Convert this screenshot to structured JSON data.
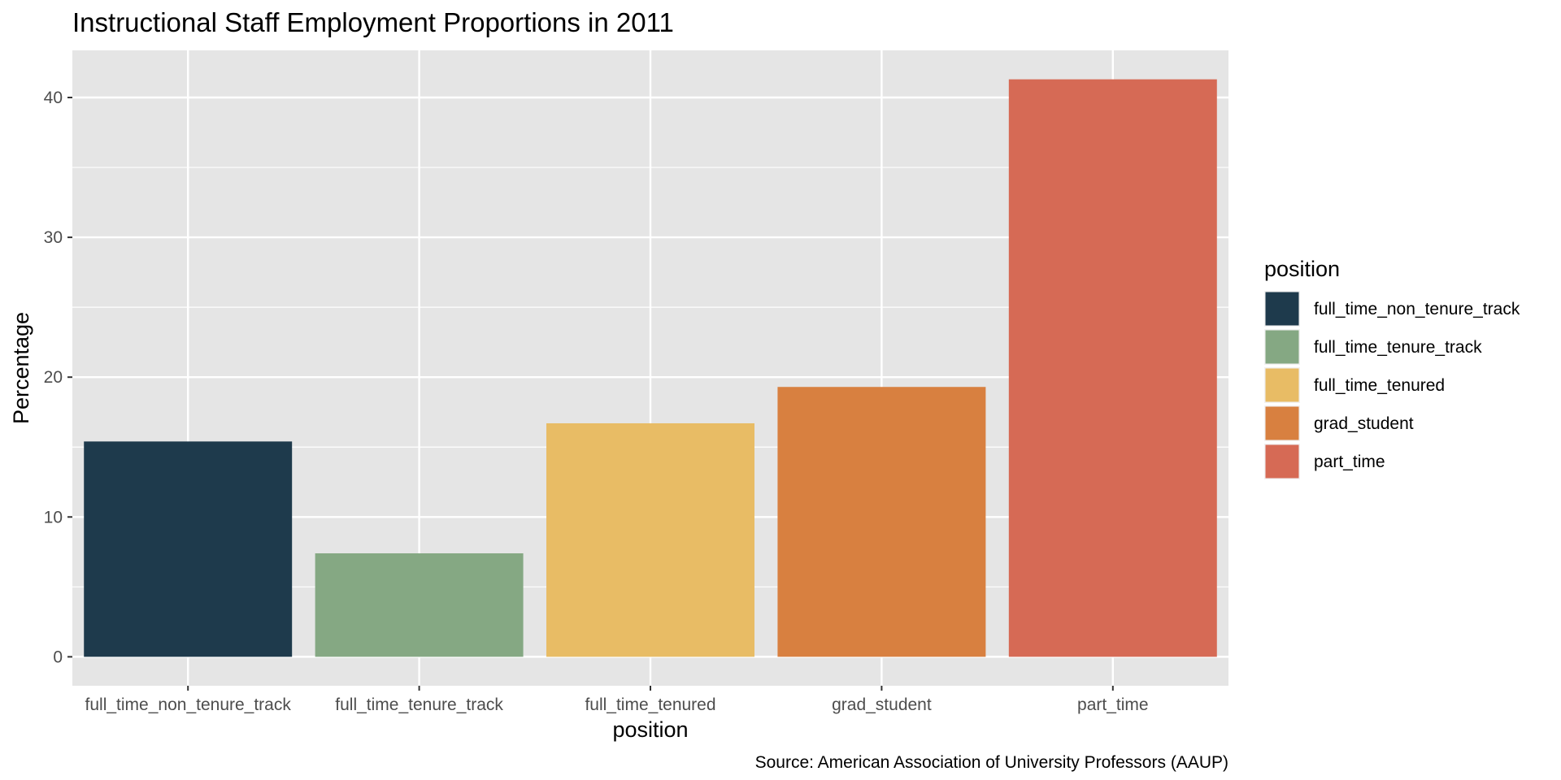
{
  "chart_data": {
    "type": "bar",
    "title": "Instructional Staff Employment Proportions in 2011",
    "xlabel": "position",
    "ylabel": "Percentage",
    "caption": "Source: American Association of University Professors (AAUP)",
    "categories": [
      "full_time_non_tenure_track",
      "full_time_tenure_track",
      "full_time_tenured",
      "grad_student",
      "part_time"
    ],
    "values": [
      15.4,
      7.4,
      16.7,
      19.3,
      41.3
    ],
    "colors": [
      "#1e3a4c",
      "#85a883",
      "#e8bc65",
      "#d88040",
      "#d66a55"
    ],
    "ylim": [
      -2.07,
      43.37
    ],
    "yticks": [
      0,
      10,
      20,
      30,
      40
    ],
    "grid": true,
    "legend": {
      "title": "position",
      "placement": "right",
      "entries": [
        "full_time_non_tenure_track",
        "full_time_tenure_track",
        "full_time_tenured",
        "grad_student",
        "part_time"
      ]
    }
  }
}
